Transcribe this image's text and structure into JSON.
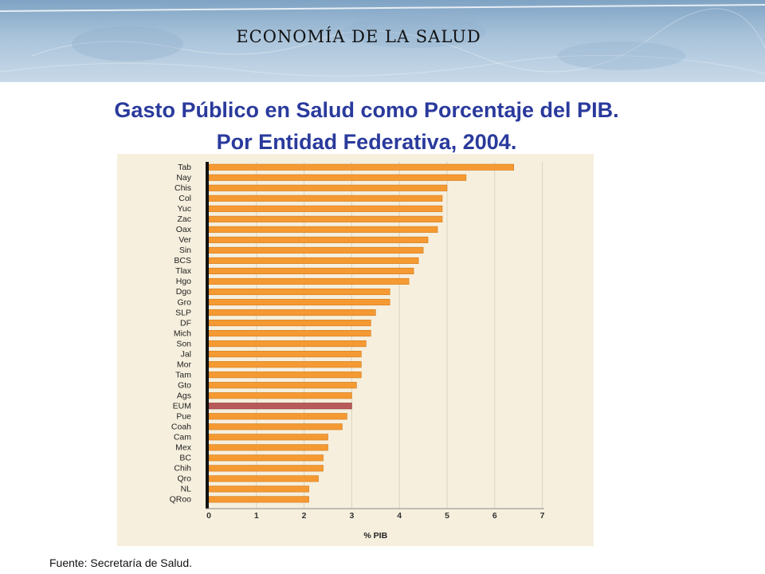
{
  "header": {
    "banner_title": "ECONOMÍA DE LA SALUD",
    "title_line1": "Gasto Público en Salud como Porcentaje del PIB.",
    "title_line2": "Por Entidad Federativa, 2004."
  },
  "footer": {
    "source": "Fuente: Secretaría de Salud."
  },
  "colors": {
    "bar": "#f59a33",
    "highlight_bar": "#b85a5a",
    "title": "#2a3a9c",
    "panel": "#f6efdd"
  },
  "chart_data": {
    "type": "bar",
    "orientation": "horizontal",
    "categories": [
      "Tab",
      "Nay",
      "Chis",
      "Col",
      "Yuc",
      "Zac",
      "Oax",
      "Ver",
      "Sin",
      "BCS",
      "Tlax",
      "Hgo",
      "Dgo",
      "Gro",
      "SLP",
      "DF",
      "Mich",
      "Son",
      "Jal",
      "Mor",
      "Tam",
      "Gto",
      "Ags",
      "EUM",
      "Pue",
      "Coah",
      "Cam",
      "Mex",
      "BC",
      "Chih",
      "Qro",
      "NL",
      "QRoo"
    ],
    "values": [
      6.4,
      5.4,
      5.0,
      4.9,
      4.9,
      4.9,
      4.8,
      4.6,
      4.5,
      4.4,
      4.3,
      4.2,
      3.8,
      3.8,
      3.5,
      3.4,
      3.4,
      3.3,
      3.2,
      3.2,
      3.2,
      3.1,
      3.0,
      3.0,
      2.9,
      2.8,
      2.5,
      2.5,
      2.4,
      2.4,
      2.3,
      2.1,
      2.1
    ],
    "highlight": "EUM",
    "xticks": [
      "0",
      "1",
      "2",
      "3",
      "4",
      "5",
      "6",
      "7"
    ],
    "xlim": [
      0,
      7
    ],
    "xlabel": "% PIB",
    "ylabel": "",
    "grid": "vertical"
  }
}
